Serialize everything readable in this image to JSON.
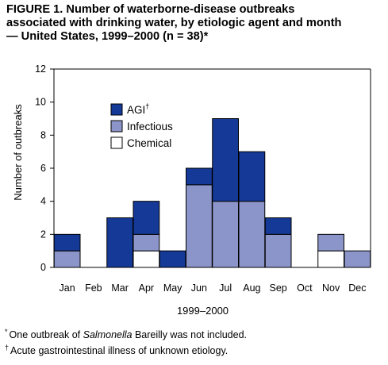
{
  "title": {
    "line1": "FIGURE 1. Number of waterborne-disease outbreaks",
    "line2": "associated with drinking water, by etiologic agent and month",
    "line3": "— United States, 1999–2000 (n = 38)*"
  },
  "chart_data": {
    "type": "bar",
    "stacked": true,
    "categories": [
      "Jan",
      "Feb",
      "Mar",
      "Apr",
      "May",
      "Jun",
      "Jul",
      "Aug",
      "Sep",
      "Oct",
      "Nov",
      "Dec"
    ],
    "series": [
      {
        "name": "Chemical",
        "color": "#ffffff",
        "values": [
          0,
          0,
          0,
          1,
          0,
          0,
          0,
          0,
          0,
          0,
          1,
          0
        ]
      },
      {
        "name": "Infectious",
        "color": "#8b95c9",
        "values": [
          1,
          0,
          0,
          1,
          0,
          5,
          4,
          4,
          2,
          0,
          1,
          1
        ]
      },
      {
        "name": "AGI",
        "color": "#153997",
        "values": [
          1,
          0,
          3,
          2,
          1,
          1,
          5,
          3,
          1,
          0,
          0,
          0
        ]
      }
    ],
    "legend_order": [
      "AGI",
      "Infectious",
      "Chemical"
    ],
    "legend_marks": {
      "AGI": "†"
    },
    "xlabel": "1999–2000",
    "ylabel": "Number of outbreaks",
    "ylim": [
      0,
      12
    ],
    "yticks": [
      "0",
      "2",
      "4",
      "6",
      "8",
      "10",
      "12"
    ],
    "grid": false,
    "legend_position": "top-left"
  },
  "footnotes": {
    "star_mark": "*",
    "star_pre": "One outbreak of ",
    "star_italic": "Salmonella",
    "star_post": " Bareilly was not included.",
    "dagger_mark": "†",
    "dagger_text": "Acute gastrointestinal illness of unknown etiology."
  }
}
